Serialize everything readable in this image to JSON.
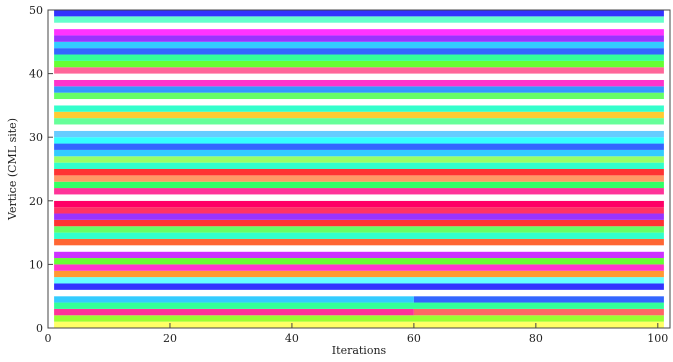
{
  "chart_data": {
    "type": "heatmap",
    "title": "",
    "xlabel": "Iterations",
    "ylabel": "Vertice (CML site)",
    "xlim": [
      0,
      102
    ],
    "ylim": [
      0,
      50
    ],
    "x_ticks": [
      0,
      20,
      40,
      60,
      80,
      100
    ],
    "y_ticks": [
      0,
      10,
      20,
      30,
      40,
      50
    ],
    "x_tick_labels": [
      "0",
      "20",
      "40",
      "60",
      "80",
      "100"
    ],
    "y_tick_labels": [
      "0",
      "10",
      "20",
      "30",
      "40",
      "50"
    ],
    "grid": false,
    "legend": "none",
    "colormap": "hue (phase)",
    "x_range": [
      1,
      101
    ],
    "cell_aspect_note": "each row is a CML site, each column an iteration; color encodes site state",
    "rows": [
      {
        "site": 1,
        "segments": [
          [
            1,
            101,
            "#ffff66"
          ]
        ]
      },
      {
        "site": 2,
        "segments": [
          [
            1,
            101,
            "#99ff33"
          ]
        ]
      },
      {
        "site": 3,
        "segments": [
          [
            1,
            60,
            "#ff3399"
          ],
          [
            60,
            101,
            "#ff6666"
          ]
        ]
      },
      {
        "site": 4,
        "segments": [
          [
            1,
            101,
            "#33ff99"
          ]
        ]
      },
      {
        "site": 5,
        "segments": [
          [
            1,
            60,
            "#33ccff"
          ],
          [
            60,
            101,
            "#3366ff"
          ]
        ]
      },
      {
        "site": 6,
        "segments": [
          [
            1,
            101,
            "#ffffff"
          ]
        ]
      },
      {
        "site": 7,
        "segments": [
          [
            1,
            101,
            "#3333ff"
          ]
        ]
      },
      {
        "site": 8,
        "segments": [
          [
            1,
            101,
            "#66ffff"
          ]
        ]
      },
      {
        "site": 9,
        "segments": [
          [
            1,
            101,
            "#ff9933"
          ]
        ]
      },
      {
        "site": 10,
        "segments": [
          [
            1,
            101,
            "#ff33cc"
          ]
        ]
      },
      {
        "site": 11,
        "segments": [
          [
            1,
            101,
            "#66ff33"
          ]
        ]
      },
      {
        "site": 12,
        "segments": [
          [
            1,
            101,
            "#cc33ff"
          ]
        ]
      },
      {
        "site": 13,
        "segments": [
          [
            1,
            101,
            "#ffffff"
          ]
        ]
      },
      {
        "site": 14,
        "segments": [
          [
            1,
            101,
            "#ff6633"
          ]
        ]
      },
      {
        "site": 15,
        "segments": [
          [
            1,
            101,
            "#33ffcc"
          ]
        ]
      },
      {
        "site": 16,
        "segments": [
          [
            1,
            101,
            "#66ff66"
          ]
        ]
      },
      {
        "site": 17,
        "segments": [
          [
            1,
            101,
            "#ff3333"
          ]
        ]
      },
      {
        "site": 18,
        "segments": [
          [
            1,
            101,
            "#9933ff"
          ]
        ]
      },
      {
        "site": 19,
        "segments": [
          [
            1,
            101,
            "#ff3366"
          ]
        ]
      },
      {
        "site": 20,
        "segments": [
          [
            1,
            101,
            "#ff0066"
          ]
        ]
      },
      {
        "site": 21,
        "segments": [
          [
            1,
            101,
            "#ffffff"
          ]
        ]
      },
      {
        "site": 22,
        "segments": [
          [
            1,
            101,
            "#ff3399"
          ]
        ]
      },
      {
        "site": 23,
        "segments": [
          [
            1,
            101,
            "#33ff66"
          ]
        ]
      },
      {
        "site": 24,
        "segments": [
          [
            1,
            101,
            "#ff9966"
          ]
        ]
      },
      {
        "site": 25,
        "segments": [
          [
            1,
            101,
            "#ff3333"
          ]
        ]
      },
      {
        "site": 26,
        "segments": [
          [
            1,
            101,
            "#33ffcc"
          ]
        ]
      },
      {
        "site": 27,
        "segments": [
          [
            1,
            101,
            "#99ff66"
          ]
        ]
      },
      {
        "site": 28,
        "segments": [
          [
            1,
            101,
            "#33ccff"
          ]
        ]
      },
      {
        "site": 29,
        "segments": [
          [
            1,
            101,
            "#3366ff"
          ]
        ]
      },
      {
        "site": 30,
        "segments": [
          [
            1,
            101,
            "#33ffff"
          ]
        ]
      },
      {
        "site": 31,
        "segments": [
          [
            1,
            101,
            "#66ccff"
          ]
        ]
      },
      {
        "site": 32,
        "segments": [
          [
            1,
            101,
            "#ffffff"
          ]
        ]
      },
      {
        "site": 33,
        "segments": [
          [
            1,
            101,
            "#66ff99"
          ]
        ]
      },
      {
        "site": 34,
        "segments": [
          [
            1,
            101,
            "#ffcc33"
          ]
        ]
      },
      {
        "site": 35,
        "segments": [
          [
            1,
            101,
            "#33ffcc"
          ]
        ]
      },
      {
        "site": 36,
        "segments": [
          [
            1,
            101,
            "#ffffff"
          ]
        ]
      },
      {
        "site": 37,
        "segments": [
          [
            1,
            101,
            "#66ff66"
          ]
        ]
      },
      {
        "site": 38,
        "segments": [
          [
            1,
            101,
            "#3399ff"
          ]
        ]
      },
      {
        "site": 39,
        "segments": [
          [
            1,
            101,
            "#ff33cc"
          ]
        ]
      },
      {
        "site": 40,
        "segments": [
          [
            1,
            101,
            "#ffffff"
          ]
        ]
      },
      {
        "site": 41,
        "segments": [
          [
            1,
            101,
            "#ff6699"
          ]
        ]
      },
      {
        "site": 42,
        "segments": [
          [
            1,
            101,
            "#66ff33"
          ]
        ]
      },
      {
        "site": 43,
        "segments": [
          [
            1,
            101,
            "#33ff99"
          ]
        ]
      },
      {
        "site": 44,
        "segments": [
          [
            1,
            101,
            "#3366ff"
          ]
        ]
      },
      {
        "site": 45,
        "segments": [
          [
            1,
            101,
            "#33ccff"
          ]
        ]
      },
      {
        "site": 46,
        "segments": [
          [
            1,
            101,
            "#9933ff"
          ]
        ]
      },
      {
        "site": 47,
        "segments": [
          [
            1,
            101,
            "#ff33ff"
          ]
        ]
      },
      {
        "site": 48,
        "segments": [
          [
            1,
            101,
            "#ffffff"
          ]
        ]
      },
      {
        "site": 49,
        "segments": [
          [
            1,
            101,
            "#66ffcc"
          ]
        ]
      },
      {
        "site": 50,
        "segments": [
          [
            1,
            101,
            "#3333ff"
          ]
        ]
      }
    ]
  }
}
